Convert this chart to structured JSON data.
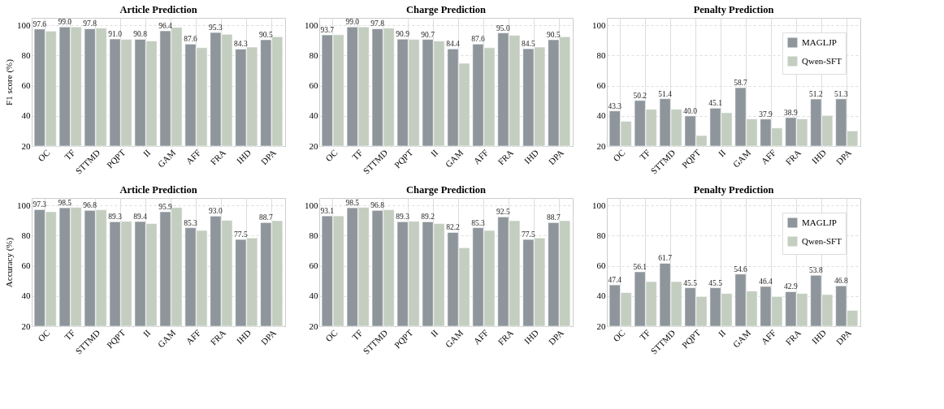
{
  "chart_data": [
    {
      "type": "bar",
      "title": "Article Prediction",
      "ylabel": "F1 score (%)",
      "categories": [
        "OC",
        "TF",
        "STTMD",
        "PQPT",
        "II",
        "GAM",
        "AFF",
        "FRA",
        "IHD",
        "DPA"
      ],
      "series": [
        {
          "color": "#8e969c",
          "values": [
            97.6,
            99.0,
            97.8,
            91.0,
            90.8,
            96.4,
            87.6,
            95.3,
            84.3,
            90.5
          ],
          "value_labels": [
            "97.6",
            "99.0",
            "97.8",
            "91.0",
            "90.8",
            "96.4",
            "87.6",
            "95.3",
            "84.3",
            "90.5"
          ]
        },
        {
          "color": "#c3cec0",
          "values": [
            96.2,
            99.0,
            98.2,
            90.8,
            89.7,
            98.7,
            85.2,
            94.1,
            85.6,
            92.5
          ]
        }
      ],
      "ylim": [
        20,
        105
      ],
      "yticks": [
        20,
        40,
        60,
        80,
        100
      ],
      "grid": true
    },
    {
      "type": "bar",
      "title": "Charge Prediction",
      "categories": [
        "OC",
        "TF",
        "STTMD",
        "PQPT",
        "II",
        "GAM",
        "AFF",
        "FRA",
        "IHD",
        "DPA"
      ],
      "series": [
        {
          "color": "#8e969c",
          "values": [
            93.7,
            99.0,
            97.8,
            90.9,
            90.7,
            84.4,
            87.6,
            95.0,
            84.5,
            90.5
          ],
          "value_labels": [
            "93.7",
            "99.0",
            "97.8",
            "90.9",
            "90.7",
            "84.4",
            "87.6",
            "95.0",
            "84.5",
            "90.5"
          ]
        },
        {
          "color": "#c3cec0",
          "values": [
            93.8,
            99.0,
            98.2,
            90.8,
            89.7,
            74.9,
            85.2,
            93.4,
            85.6,
            92.5
          ]
        }
      ],
      "ylim": [
        20,
        105
      ],
      "yticks": [
        20,
        40,
        60,
        80,
        100
      ],
      "grid": true
    },
    {
      "type": "bar",
      "title": "Penalty Prediction",
      "categories": [
        "OC",
        "TF",
        "STTMD",
        "PQPT",
        "II",
        "GAM",
        "AFF",
        "FRA",
        "IHD",
        "DPA"
      ],
      "series": [
        {
          "name": "MAGLJP",
          "color": "#8e969c",
          "values": [
            43.3,
            50.2,
            51.4,
            40.0,
            45.1,
            58.7,
            37.9,
            38.9,
            51.2,
            51.3
          ],
          "value_labels": [
            "43.3",
            "50.2",
            "51.4",
            "40.0",
            "45.1",
            "58.7",
            "37.9",
            "38.9",
            "51.2",
            "51.3"
          ]
        },
        {
          "name": "Qwen-SFT",
          "color": "#c3cec0",
          "values": [
            36.4,
            44.4,
            44.4,
            27.0,
            42.1,
            38.0,
            32.0,
            38.0,
            40.3,
            30.0
          ]
        }
      ],
      "ylim": [
        20,
        105
      ],
      "yticks": [
        20,
        40,
        60,
        80,
        100
      ],
      "grid": true,
      "legend": "top right"
    },
    {
      "type": "bar",
      "title": "Article Prediction",
      "ylabel": "Accuracy (%)",
      "categories": [
        "OC",
        "TF",
        "STTMD",
        "PQPT",
        "II",
        "GAM",
        "AFF",
        "FRA",
        "IHD",
        "DPA"
      ],
      "series": [
        {
          "color": "#8e969c",
          "values": [
            97.3,
            98.5,
            96.8,
            89.3,
            89.4,
            95.9,
            85.3,
            93.0,
            77.5,
            88.7
          ],
          "value_labels": [
            "97.3",
            "98.5",
            "96.8",
            "89.3",
            "89.4",
            "95.9",
            "85.3",
            "93.0",
            "77.5",
            "88.7"
          ]
        },
        {
          "color": "#c3cec0",
          "values": [
            95.9,
            98.8,
            97.2,
            89.6,
            88.0,
            98.7,
            83.5,
            90.2,
            78.5,
            90.0
          ]
        }
      ],
      "ylim": [
        20,
        105
      ],
      "yticks": [
        20,
        40,
        60,
        80,
        100
      ],
      "grid": true
    },
    {
      "type": "bar",
      "title": "Charge Prediction",
      "categories": [
        "OC",
        "TF",
        "STTMD",
        "PQPT",
        "II",
        "GAM",
        "AFF",
        "FRA",
        "IHD",
        "DPA"
      ],
      "series": [
        {
          "color": "#8e969c",
          "values": [
            93.1,
            98.5,
            96.8,
            89.3,
            89.2,
            82.2,
            85.3,
            92.5,
            77.5,
            88.7
          ],
          "value_labels": [
            "93.1",
            "98.5",
            "96.8",
            "89.3",
            "89.2",
            "82.2",
            "85.3",
            "92.5",
            "77.5",
            "88.7"
          ]
        },
        {
          "color": "#c3cec0",
          "values": [
            93.1,
            98.8,
            97.2,
            89.6,
            88.0,
            72.0,
            83.5,
            90.0,
            78.5,
            90.0
          ]
        }
      ],
      "ylim": [
        20,
        105
      ],
      "yticks": [
        20,
        40,
        60,
        80,
        100
      ],
      "grid": true
    },
    {
      "type": "bar",
      "title": "Penalty Prediction",
      "categories": [
        "OC",
        "TF",
        "STTMD",
        "PQPT",
        "II",
        "GAM",
        "AFF",
        "FRA",
        "IHD",
        "DPA"
      ],
      "series": [
        {
          "name": "MAGLJP",
          "color": "#8e969c",
          "values": [
            47.4,
            56.1,
            61.7,
            45.5,
            45.5,
            54.6,
            46.4,
            42.9,
            53.8,
            46.8
          ],
          "value_labels": [
            "47.4",
            "56.1",
            "61.7",
            "45.5",
            "45.5",
            "54.6",
            "46.4",
            "42.9",
            "53.8",
            "46.8"
          ]
        },
        {
          "name": "Qwen-SFT",
          "color": "#c3cec0",
          "values": [
            42.3,
            49.6,
            49.6,
            39.7,
            41.7,
            43.3,
            39.7,
            41.7,
            41.0,
            30.5
          ]
        }
      ],
      "ylim": [
        20,
        105
      ],
      "yticks": [
        20,
        40,
        60,
        80,
        100
      ],
      "grid": true,
      "legend": "top right"
    }
  ]
}
